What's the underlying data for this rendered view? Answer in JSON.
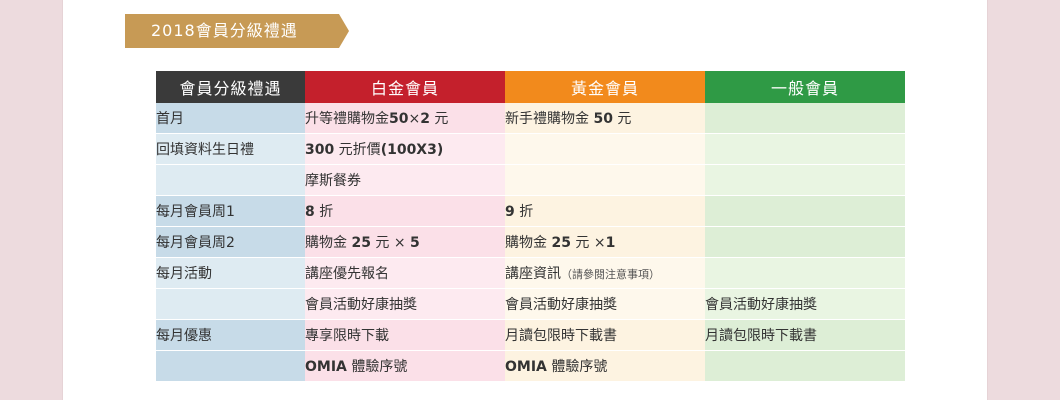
{
  "banner": {
    "title": "2018會員分級禮遇",
    "color": "#c79a55"
  },
  "table": {
    "headers": [
      {
        "label": "會員分級禮遇",
        "color": "#3a3a3a"
      },
      {
        "label": "白金會員",
        "color": "#c4202c"
      },
      {
        "label": "黃金會員",
        "color": "#f28a1c"
      },
      {
        "label": "一般會員",
        "color": "#2f9a45"
      }
    ],
    "rows": [
      {
        "category": "首月",
        "platinum": [
          {
            "t": "升等禮購物金"
          },
          {
            "t": "50",
            "b": true
          },
          {
            "t": "×"
          },
          {
            "t": "2",
            "b": true
          },
          {
            "t": " 元"
          }
        ],
        "gold": [
          {
            "t": "新手禮購物金 "
          },
          {
            "t": "50",
            "b": true
          },
          {
            "t": " 元"
          }
        ],
        "general": []
      },
      {
        "category": "回填資料生日禮",
        "platinum": [
          {
            "t": "300",
            "b": true
          },
          {
            "t": " 元折價"
          },
          {
            "t": "(100X3)",
            "b": true
          }
        ],
        "gold": [],
        "general": []
      },
      {
        "category": "",
        "platinum": [
          {
            "t": "摩斯餐券"
          }
        ],
        "gold": [],
        "general": []
      },
      {
        "category": "每月會員周1",
        "platinum": [
          {
            "t": "8",
            "b": true
          },
          {
            "t": " 折"
          }
        ],
        "gold": [
          {
            "t": "9",
            "b": true
          },
          {
            "t": " 折"
          }
        ],
        "general": []
      },
      {
        "category": "每月會員周2",
        "platinum": [
          {
            "t": "購物金 "
          },
          {
            "t": "25",
            "b": true
          },
          {
            "t": " 元 × "
          },
          {
            "t": "5",
            "b": true
          }
        ],
        "gold": [
          {
            "t": "購物金 "
          },
          {
            "t": "25",
            "b": true
          },
          {
            "t": " 元 ×"
          },
          {
            "t": "1",
            "b": true
          }
        ],
        "general": []
      },
      {
        "category": "每月活動",
        "platinum": [
          {
            "t": "講座優先報名"
          }
        ],
        "gold": [
          {
            "t": "講座資訊"
          },
          {
            "t": "（請參閱注意事項）",
            "s": true
          }
        ],
        "general": []
      },
      {
        "category": "",
        "platinum": [
          {
            "t": "會員活動好康抽獎"
          }
        ],
        "gold": [
          {
            "t": "會員活動好康抽獎"
          }
        ],
        "general": [
          {
            "t": "會員活動好康抽獎"
          }
        ]
      },
      {
        "category": "每月優惠",
        "platinum": [
          {
            "t": "專享限時下載"
          }
        ],
        "gold": [
          {
            "t": "月讀包限時下載書"
          }
        ],
        "general": [
          {
            "t": "月讀包限時下載書"
          }
        ]
      },
      {
        "category": "",
        "platinum": [
          {
            "t": "OMIA",
            "b": true
          },
          {
            "t": " 體驗序號"
          }
        ],
        "gold": [
          {
            "t": "OMIA",
            "b": true
          },
          {
            "t": " 體驗序號"
          }
        ],
        "general": []
      }
    ]
  }
}
